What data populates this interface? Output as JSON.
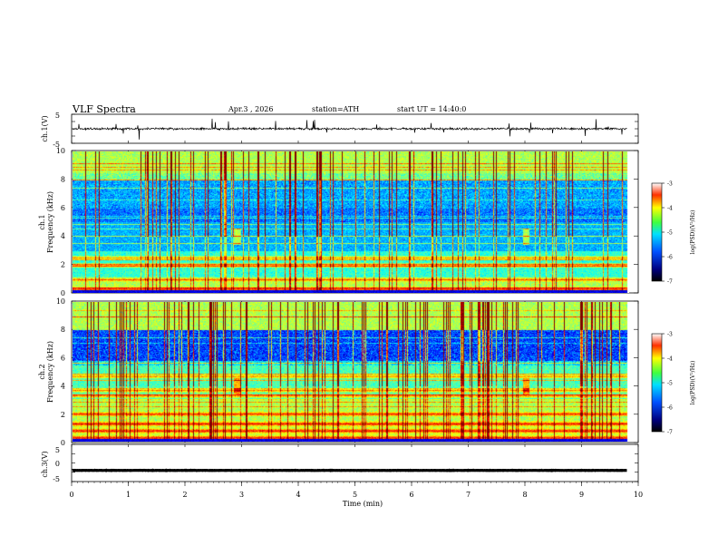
{
  "header": {
    "title": "VLF Spectra",
    "date": "Apr.3 , 2026",
    "station": "station=ATH",
    "start": "start UT = 14:40:0"
  },
  "chart_data": [
    {
      "type": "line",
      "name": "ch1-waveform",
      "ylabel": "ch.1(V)",
      "ylim": [
        -5,
        5
      ],
      "yticks": [
        "5",
        "-5"
      ],
      "xlim": [
        0,
        10
      ],
      "baseline": 0,
      "trace_color": "#000000"
    },
    {
      "type": "heatmap",
      "name": "ch1-spectrogram",
      "ylabel": "ch.1",
      "ylabel2": "Frequency (kHz)",
      "ylim": [
        0,
        10
      ],
      "yticks": [
        "10",
        "8",
        "6",
        "4",
        "2",
        "0"
      ],
      "xlim": [
        0,
        9.8
      ],
      "data_end_min": 9.8,
      "colorbar": {
        "label": "log(PSD)(V²/Hz)",
        "ticks": [
          "-3",
          "-4",
          "-5",
          "-6",
          "-7"
        ],
        "range": [
          -7,
          -3
        ]
      },
      "strong_bands_khz": [
        0.3,
        1.0,
        2.0,
        2.5
      ],
      "emission_times_min": [
        2.9,
        8.0
      ]
    },
    {
      "type": "heatmap",
      "name": "ch2-spectrogram",
      "ylabel": "ch.2",
      "ylabel2": "Frequency (kHz)",
      "ylim": [
        0,
        10
      ],
      "yticks": [
        "10",
        "8",
        "6",
        "4",
        "2",
        "0"
      ],
      "xlim": [
        0,
        9.8
      ],
      "data_end_min": 9.8,
      "colorbar": {
        "label": "log(PSD)(V²/Hz)",
        "ticks": [
          "-3",
          "-4",
          "-5",
          "-6",
          "-7"
        ],
        "range": [
          -7,
          -3
        ]
      },
      "strong_bands_khz": [
        0.3,
        0.8,
        1.3,
        2.0,
        3.3,
        3.7,
        4.7
      ],
      "emission_times_min": [
        2.9,
        8.0
      ]
    },
    {
      "type": "line",
      "name": "ch3-waveform",
      "ylabel": "ch.3(V)",
      "ylim": [
        -5,
        5
      ],
      "yticks": [
        "5",
        "0",
        "-5"
      ],
      "xlim": [
        0,
        10
      ],
      "baseline": -2,
      "trace_color": "#000000"
    }
  ],
  "xaxis": {
    "label": "Time (min)",
    "ticks": [
      "0",
      "1",
      "2",
      "3",
      "4",
      "5",
      "6",
      "7",
      "8",
      "9",
      "10"
    ]
  }
}
